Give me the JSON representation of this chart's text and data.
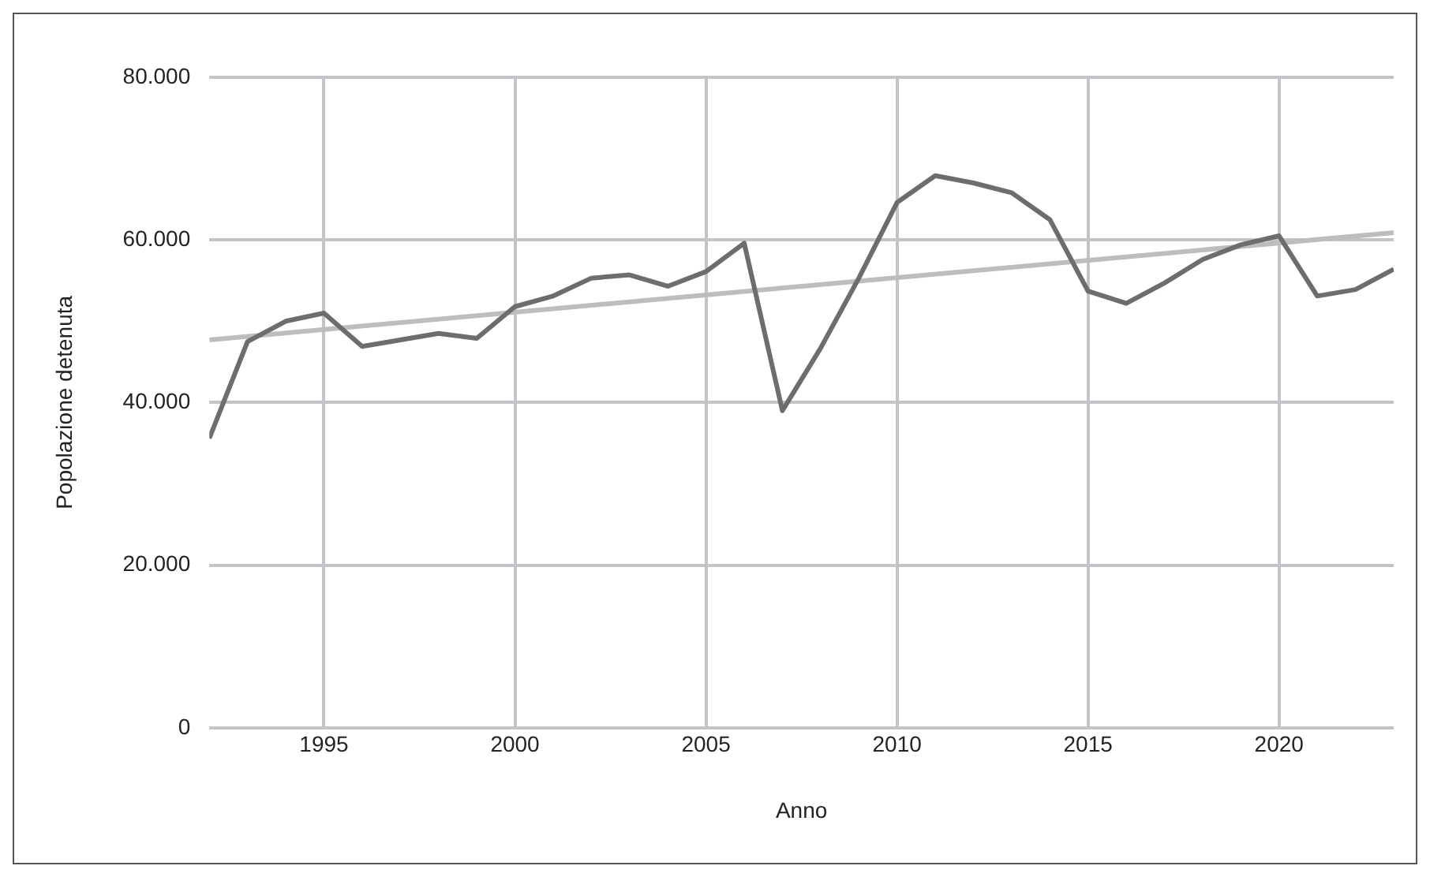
{
  "chart_data": {
    "type": "line",
    "xlabel": "Anno",
    "ylabel": "Popolazione detenuta",
    "x": [
      1992,
      1993,
      1994,
      1995,
      1996,
      1997,
      1998,
      1999,
      2000,
      2001,
      2002,
      2003,
      2004,
      2005,
      2006,
      2007,
      2008,
      2009,
      2010,
      2011,
      2012,
      2013,
      2014,
      2015,
      2016,
      2017,
      2018,
      2019,
      2020,
      2021,
      2022,
      2023
    ],
    "series": [
      {
        "color": "#6d6d70",
        "values": [
          35600,
          47500,
          50000,
          51000,
          46900,
          47700,
          48500,
          47900,
          51800,
          53100,
          55300,
          55700,
          54300,
          56100,
          59600,
          39000,
          46700,
          55300,
          64600,
          67900,
          67000,
          65800,
          62500,
          53700,
          52200,
          54700,
          57600,
          59400,
          60500,
          53100,
          53900,
          56400
        ]
      },
      {
        "type": "line",
        "color": "#bdbdbd",
        "x": [
          1992,
          2023
        ],
        "values": [
          47700,
          60900
        ]
      }
    ],
    "xlim": [
      1992,
      2023
    ],
    "xticks": [
      1995,
      2000,
      2005,
      2010,
      2015,
      2020
    ],
    "ylim": [
      0,
      80000
    ],
    "yticks": [
      {
        "value": 0,
        "label": "0"
      },
      {
        "value": 20000,
        "label": "20.000"
      },
      {
        "value": 40000,
        "label": "40.000"
      },
      {
        "value": 60000,
        "label": "60.000"
      },
      {
        "value": 80000,
        "label": "80.000"
      }
    ],
    "grid": true,
    "legend": false,
    "marker": "none",
    "line_style": "solid"
  }
}
